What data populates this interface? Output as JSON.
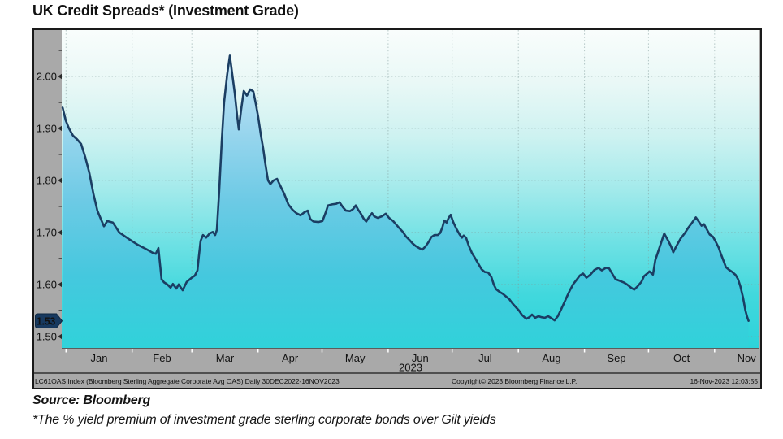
{
  "page": {
    "title": "UK Credit Spreads* (Investment Grade)",
    "source_label": "Source: Bloomberg",
    "footnote": "*The % yield premium of investment grade sterling corporate bonds over Gilt yields"
  },
  "chart_data": {
    "type": "area",
    "title": "UK Credit Spreads* (Investment Grade)",
    "xlabel": "",
    "ylabel": "",
    "grid": true,
    "legend": false,
    "ylim": [
      1.478,
      2.089
    ],
    "y_ticks": [
      1.5,
      1.6,
      1.7,
      1.8,
      1.9,
      2.0
    ],
    "y_tick_labels": [
      "1.50",
      "1.60",
      "1.70",
      "1.80",
      "1.90",
      "2.00"
    ],
    "y_minor_ticks": [
      1.55,
      1.65,
      1.75,
      1.85,
      1.95,
      2.05
    ],
    "last_value": 1.53,
    "last_value_label": "1.53",
    "x_axis": {
      "start_label": "30DEC2022",
      "end_label": "16NOV2023",
      "total_days": 327,
      "month_boundary_days": [
        2,
        33,
        61,
        92,
        122,
        153,
        183,
        214,
        245,
        275,
        306
      ],
      "month_labels": [
        "Jan",
        "Feb",
        "Mar",
        "Apr",
        "May",
        "Jun",
        "Jul",
        "Aug",
        "Sep",
        "Oct",
        "Nov"
      ],
      "month_label_center_days": [
        17.5,
        47,
        76.5,
        107,
        137.5,
        168,
        198.5,
        229.5,
        260,
        290.5,
        321
      ],
      "year_label": "2023"
    },
    "footer_left": "LC61OAS Index (Bloomberg Sterling Aggregate Corporate Avg OAS)  Daily 30DEC2022-16NOV2023",
    "footer_center": "Copyright© 2023 Bloomberg Finance L.P.",
    "footer_right": "16-Nov-2023 12:03:55",
    "colors": {
      "line": "#1b3e63",
      "badge_bg": "#17395f",
      "badge_text": "#ffffff",
      "frame": "#1a1a1a",
      "axis_strip": "#a9a9a9",
      "grid": "#7f9a9a",
      "tick_white": "#ffffff",
      "text": "#111111",
      "bg_gradient": [
        "#f9fdfc",
        "#e9f8f6",
        "#cef2f1",
        "#a3eaeb",
        "#6fe1e4",
        "#41d8dd",
        "#2cd3da"
      ],
      "fill_gradient": [
        "#c9e6f7",
        "#9bd6ee",
        "#6ccae5",
        "#45c8de",
        "#30d2da"
      ]
    },
    "series": [
      {
        "name": "LC61OAS Index",
        "x_unit": "days since 30DEC2022",
        "points": [
          [
            0.4,
            1.94
          ],
          [
            1.9,
            1.915
          ],
          [
            3.4,
            1.9
          ],
          [
            5.3,
            1.886
          ],
          [
            7.2,
            1.879
          ],
          [
            9.1,
            1.87
          ],
          [
            11,
            1.845
          ],
          [
            12.9,
            1.815
          ],
          [
            14.8,
            1.775
          ],
          [
            16.7,
            1.742
          ],
          [
            18.3,
            1.726
          ],
          [
            19.8,
            1.712
          ],
          [
            21.3,
            1.722
          ],
          [
            24,
            1.719
          ],
          [
            27,
            1.7
          ],
          [
            31.2,
            1.688
          ],
          [
            35.8,
            1.676
          ],
          [
            39.6,
            1.668
          ],
          [
            42.6,
            1.661
          ],
          [
            44.1,
            1.659
          ],
          [
            45.3,
            1.67
          ],
          [
            46.1,
            1.638
          ],
          [
            46.8,
            1.61
          ],
          [
            48,
            1.604
          ],
          [
            49.5,
            1.6
          ],
          [
            51,
            1.594
          ],
          [
            52.1,
            1.601
          ],
          [
            53.7,
            1.592
          ],
          [
            54.8,
            1.6
          ],
          [
            56.7,
            1.589
          ],
          [
            58.6,
            1.605
          ],
          [
            60.9,
            1.613
          ],
          [
            62.4,
            1.617
          ],
          [
            63.6,
            1.627
          ],
          [
            64.3,
            1.655
          ],
          [
            65.1,
            1.684
          ],
          [
            66.2,
            1.695
          ],
          [
            67.7,
            1.69
          ],
          [
            69.3,
            1.698
          ],
          [
            70.8,
            1.701
          ],
          [
            71.9,
            1.695
          ],
          [
            72.7,
            1.705
          ],
          [
            73.8,
            1.78
          ],
          [
            75,
            1.875
          ],
          [
            76.1,
            1.95
          ],
          [
            77.6,
            2.005
          ],
          [
            78.8,
            2.04
          ],
          [
            79.9,
            2.005
          ],
          [
            81.1,
            1.968
          ],
          [
            82.2,
            1.925
          ],
          [
            83,
            1.898
          ],
          [
            84.1,
            1.936
          ],
          [
            85.3,
            1.972
          ],
          [
            86.8,
            1.963
          ],
          [
            88.3,
            1.975
          ],
          [
            89.8,
            1.971
          ],
          [
            91,
            1.947
          ],
          [
            92.1,
            1.922
          ],
          [
            93.3,
            1.888
          ],
          [
            94.4,
            1.862
          ],
          [
            95.5,
            1.83
          ],
          [
            96.7,
            1.8
          ],
          [
            97.8,
            1.793
          ],
          [
            99.3,
            1.8
          ],
          [
            100.9,
            1.803
          ],
          [
            102.4,
            1.79
          ],
          [
            104.3,
            1.774
          ],
          [
            106.2,
            1.754
          ],
          [
            108.1,
            1.744
          ],
          [
            110,
            1.737
          ],
          [
            111.9,
            1.733
          ],
          [
            113.8,
            1.739
          ],
          [
            115.3,
            1.742
          ],
          [
            116.5,
            1.726
          ],
          [
            118,
            1.721
          ],
          [
            120.3,
            1.72
          ],
          [
            122.2,
            1.722
          ],
          [
            123.7,
            1.738
          ],
          [
            124.8,
            1.752
          ],
          [
            126.7,
            1.754
          ],
          [
            128.6,
            1.755
          ],
          [
            130.2,
            1.758
          ],
          [
            131.7,
            1.749
          ],
          [
            133.2,
            1.742
          ],
          [
            135.1,
            1.741
          ],
          [
            136.6,
            1.745
          ],
          [
            137.8,
            1.752
          ],
          [
            138.9,
            1.744
          ],
          [
            140.1,
            1.737
          ],
          [
            141.6,
            1.726
          ],
          [
            142.7,
            1.721
          ],
          [
            143.9,
            1.729
          ],
          [
            145.4,
            1.737
          ],
          [
            146.5,
            1.731
          ],
          [
            148.1,
            1.728
          ],
          [
            150,
            1.731
          ],
          [
            151.9,
            1.736
          ],
          [
            153.4,
            1.728
          ],
          [
            155.3,
            1.722
          ],
          [
            156.8,
            1.715
          ],
          [
            158.3,
            1.708
          ],
          [
            159.9,
            1.701
          ],
          [
            161.4,
            1.692
          ],
          [
            162.9,
            1.686
          ],
          [
            164.4,
            1.679
          ],
          [
            165.9,
            1.674
          ],
          [
            167.5,
            1.67
          ],
          [
            169,
            1.667
          ],
          [
            170.5,
            1.673
          ],
          [
            172,
            1.682
          ],
          [
            173.2,
            1.691
          ],
          [
            174.7,
            1.695
          ],
          [
            176.2,
            1.695
          ],
          [
            177.4,
            1.699
          ],
          [
            178.5,
            1.711
          ],
          [
            179.3,
            1.723
          ],
          [
            180.4,
            1.719
          ],
          [
            181.2,
            1.727
          ],
          [
            182.3,
            1.734
          ],
          [
            183.5,
            1.72
          ],
          [
            185,
            1.707
          ],
          [
            186.5,
            1.696
          ],
          [
            187.6,
            1.69
          ],
          [
            188.4,
            1.694
          ],
          [
            189.5,
            1.69
          ],
          [
            190.7,
            1.675
          ],
          [
            192.2,
            1.661
          ],
          [
            193.7,
            1.651
          ],
          [
            195.2,
            1.64
          ],
          [
            196.8,
            1.629
          ],
          [
            198.3,
            1.624
          ],
          [
            199.8,
            1.623
          ],
          [
            201.3,
            1.615
          ],
          [
            202.5,
            1.6
          ],
          [
            203.6,
            1.591
          ],
          [
            205.1,
            1.586
          ],
          [
            206.7,
            1.582
          ],
          [
            208.2,
            1.577
          ],
          [
            209.7,
            1.572
          ],
          [
            211.2,
            1.564
          ],
          [
            212.7,
            1.557
          ],
          [
            214.3,
            1.55
          ],
          [
            215.8,
            1.541
          ],
          [
            217.7,
            1.534
          ],
          [
            219.2,
            1.537
          ],
          [
            220.4,
            1.542
          ],
          [
            221.9,
            1.536
          ],
          [
            223.4,
            1.539
          ],
          [
            224.9,
            1.537
          ],
          [
            226.4,
            1.536
          ],
          [
            228,
            1.539
          ],
          [
            229.5,
            1.535
          ],
          [
            231,
            1.531
          ],
          [
            232.5,
            1.539
          ],
          [
            233.7,
            1.549
          ],
          [
            235.2,
            1.562
          ],
          [
            236.7,
            1.576
          ],
          [
            238.2,
            1.589
          ],
          [
            239.8,
            1.601
          ],
          [
            241.3,
            1.609
          ],
          [
            242.8,
            1.617
          ],
          [
            244.3,
            1.621
          ],
          [
            245.9,
            1.613
          ],
          [
            247.8,
            1.619
          ],
          [
            249.7,
            1.628
          ],
          [
            251.6,
            1.632
          ],
          [
            253.1,
            1.627
          ],
          [
            255,
            1.632
          ],
          [
            256.5,
            1.631
          ],
          [
            258,
            1.621
          ],
          [
            259.6,
            1.61
          ],
          [
            261.5,
            1.607
          ],
          [
            263.4,
            1.604
          ],
          [
            264.9,
            1.6
          ],
          [
            266.8,
            1.594
          ],
          [
            268.3,
            1.59
          ],
          [
            269.8,
            1.596
          ],
          [
            271.7,
            1.605
          ],
          [
            272.9,
            1.616
          ],
          [
            274.4,
            1.621
          ],
          [
            275.5,
            1.625
          ],
          [
            277.1,
            1.619
          ],
          [
            278.2,
            1.647
          ],
          [
            279.7,
            1.665
          ],
          [
            280.9,
            1.68
          ],
          [
            282.4,
            1.698
          ],
          [
            284.3,
            1.684
          ],
          [
            285.8,
            1.671
          ],
          [
            286.6,
            1.662
          ],
          [
            288.1,
            1.674
          ],
          [
            290,
            1.688
          ],
          [
            291.9,
            1.698
          ],
          [
            293.8,
            1.71
          ],
          [
            295.3,
            1.718
          ],
          [
            297.2,
            1.729
          ],
          [
            298.4,
            1.722
          ],
          [
            299.9,
            1.713
          ],
          [
            301,
            1.716
          ],
          [
            302.6,
            1.704
          ],
          [
            303.7,
            1.696
          ],
          [
            305.2,
            1.692
          ],
          [
            306.4,
            1.683
          ],
          [
            307.9,
            1.671
          ],
          [
            309,
            1.658
          ],
          [
            310.2,
            1.645
          ],
          [
            311.3,
            1.633
          ],
          [
            312.8,
            1.628
          ],
          [
            314.3,
            1.624
          ],
          [
            315.9,
            1.618
          ],
          [
            317,
            1.61
          ],
          [
            318.1,
            1.596
          ],
          [
            319.3,
            1.575
          ],
          [
            320.4,
            1.55
          ],
          [
            321.2,
            1.538
          ],
          [
            321.9,
            1.53
          ]
        ]
      }
    ]
  }
}
